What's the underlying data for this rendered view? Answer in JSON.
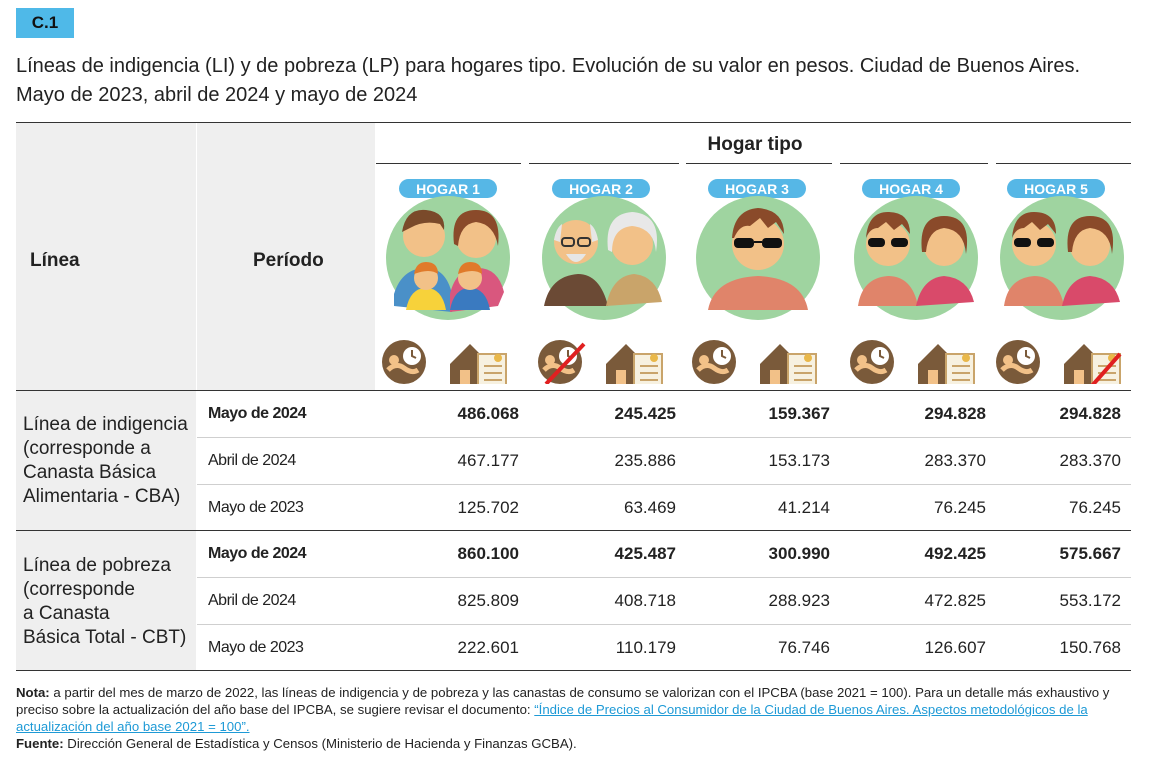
{
  "badge": "C.1",
  "title_line1": "Líneas de indigencia (LI) y de pobreza (LP) para hogares tipo. Evolución de su valor en pesos. Ciudad de Buenos Aires.",
  "title_line2": "Mayo de 2023, abril de 2024 y mayo de 2024",
  "header": {
    "linea": "Línea",
    "periodo": "Período",
    "hogar_tipo": "Hogar tipo",
    "hogares": [
      "HOGAR 1",
      "HOGAR 2",
      "HOGAR 3",
      "HOGAR 4",
      "HOGAR 5"
    ]
  },
  "icons": {
    "hogar_1": [
      "family-of-four-icon",
      "childcare-icon",
      "house-deed-icon"
    ],
    "hogar_2": [
      "elderly-couple-icon",
      "childcare-crossed-icon",
      "house-deed-icon"
    ],
    "hogar_3": [
      "single-man-sunglasses-icon",
      "childcare-icon",
      "house-deed-icon"
    ],
    "hogar_4": [
      "couple-icon",
      "childcare-icon",
      "house-deed-icon"
    ],
    "hogar_5": [
      "couple-icon",
      "childcare-icon",
      "house-deed-crossed-icon"
    ]
  },
  "groups": [
    {
      "label": [
        "Línea de indigencia",
        "(corresponde a",
        "Canasta Básica",
        "Alimentaria - CBA)"
      ],
      "rows": [
        {
          "period": "Mayo de 2024",
          "bold": true,
          "values": [
            "486.068",
            "245.425",
            "159.367",
            "294.828",
            "294.828"
          ]
        },
        {
          "period": "Abril de 2024",
          "bold": false,
          "values": [
            "467.177",
            "235.886",
            "153.173",
            "283.370",
            "283.370"
          ]
        },
        {
          "period": "Mayo de 2023",
          "bold": false,
          "values": [
            "125.702",
            "63.469",
            "41.214",
            "76.245",
            "76.245"
          ]
        }
      ]
    },
    {
      "label": [
        "Línea de pobreza",
        "(corresponde",
        "a Canasta",
        "Básica Total - CBT)"
      ],
      "rows": [
        {
          "period": "Mayo de 2024",
          "bold": true,
          "values": [
            "860.100",
            "425.487",
            "300.990",
            "492.425",
            "575.667"
          ]
        },
        {
          "period": "Abril de 2024",
          "bold": false,
          "values": [
            "825.809",
            "408.718",
            "288.923",
            "472.825",
            "553.172"
          ]
        },
        {
          "period": "Mayo de 2023",
          "bold": false,
          "values": [
            "222.601",
            "110.179",
            "76.746",
            "126.607",
            "150.768"
          ]
        }
      ]
    }
  ],
  "notes": {
    "nota_label": "Nota:",
    "nota_text": " a partir del mes de marzo de 2022, las líneas de indigencia y de pobreza y las canastas de consumo se valorizan con el IPCBA (base 2021 = 100). Para un detalle más exhaustivo y preciso sobre la actualización del año base del IPCBA, se sugiere revisar el documento: ",
    "nota_link": "“Índice de Precios al Consumidor de la Ciudad de Buenos Aires. Aspectos metodológicos de la actualización del año base 2021 = 100”.",
    "fuente_label": "Fuente:",
    "fuente_text": " Dirección General de Estadística y Censos (Ministerio de Hacienda y Finanzas GCBA)."
  },
  "colors": {
    "accent": "#4fb9e8",
    "pill": "#56b7e6",
    "circle_bg": "#9fd4a0",
    "label_bg": "#efefef"
  }
}
